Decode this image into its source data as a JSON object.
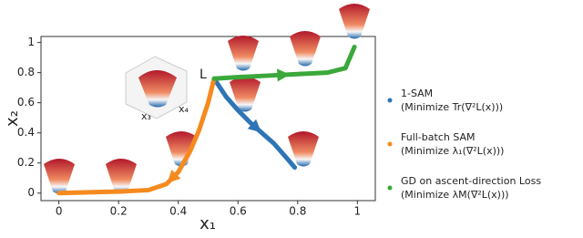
{
  "chart_data": {
    "type": "line",
    "xlabel": "x₁",
    "ylabel": "x₂",
    "xlim": [
      -0.06,
      1.06
    ],
    "ylim": [
      -0.05,
      1.04
    ],
    "xticks": [
      0,
      0.2,
      0.4,
      0.6,
      0.8,
      1
    ],
    "yticks": [
      0,
      0.2,
      0.4,
      0.6,
      0.8,
      1
    ],
    "annotations": [
      "L",
      "x₃",
      "x₄"
    ],
    "series": [
      {
        "name": "1-SAM",
        "description": "(Minimize Tr(∇²L(x)))",
        "color": "#2e75b6",
        "x": [
          0.52,
          0.56,
          0.6,
          0.64,
          0.68,
          0.72,
          0.76,
          0.79
        ],
        "values": [
          0.76,
          0.64,
          0.55,
          0.47,
          0.4,
          0.33,
          0.24,
          0.17
        ]
      },
      {
        "name": "Full-batch SAM",
        "description": "(Minimize λ₁(∇²L(x)))",
        "color": "#f58a1f",
        "x": [
          0.52,
          0.5,
          0.47,
          0.44,
          0.4,
          0.36,
          0.3,
          0.2,
          0.1,
          0
        ],
        "values": [
          0.76,
          0.6,
          0.42,
          0.28,
          0.14,
          0.06,
          0.02,
          0.01,
          0.005,
          0
        ]
      },
      {
        "name": "GD on ascent-direction Loss",
        "description": "(Minimize λM(∇²L(x)))",
        "color": "#3aa83a",
        "x": [
          0.52,
          0.6,
          0.7,
          0.8,
          0.9,
          0.96,
          0.99
        ],
        "values": [
          0.76,
          0.77,
          0.78,
          0.79,
          0.8,
          0.83,
          0.97
        ]
      }
    ]
  }
}
